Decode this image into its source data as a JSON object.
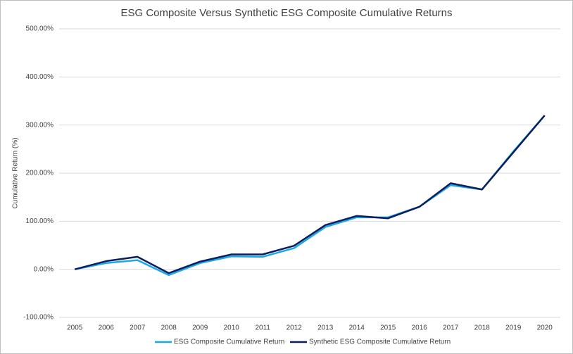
{
  "chart_data": {
    "type": "line",
    "title": "ESG Composite Versus Synthetic ESG Composite Cumulative Returns",
    "y_label": "Cumulative Return (%)",
    "categories": [
      "2005",
      "2006",
      "2007",
      "2008",
      "2009",
      "2010",
      "2011",
      "2012",
      "2013",
      "2014",
      "2015",
      "2016",
      "2017",
      "2018",
      "2019",
      "2020"
    ],
    "series": [
      {
        "name": "ESG Composite Cumulative Return",
        "color": "#1ea7e8",
        "values": [
          0,
          13,
          19,
          -12,
          13,
          27,
          26,
          44,
          88,
          108,
          108,
          130,
          175,
          166,
          245,
          320
        ]
      },
      {
        "name": "Synthetic ESG Composite Cumulative Return",
        "color": "#0b1f5c",
        "values": [
          0,
          17,
          26,
          -8,
          16,
          31,
          31,
          49,
          92,
          111,
          106,
          130,
          179,
          166,
          243,
          320
        ]
      }
    ],
    "ylim": [
      -100,
      500
    ],
    "yticks": [
      {
        "value": -100,
        "label": "-100.00%"
      },
      {
        "value": 0,
        "label": "0.00%"
      },
      {
        "value": 100,
        "label": "100.00%"
      },
      {
        "value": 200,
        "label": "200.00%"
      },
      {
        "value": 300,
        "label": "300.00%"
      },
      {
        "value": 400,
        "label": "400.00%"
      },
      {
        "value": 500,
        "label": "500.00%"
      }
    ],
    "grid": true,
    "legend": "bottom"
  }
}
